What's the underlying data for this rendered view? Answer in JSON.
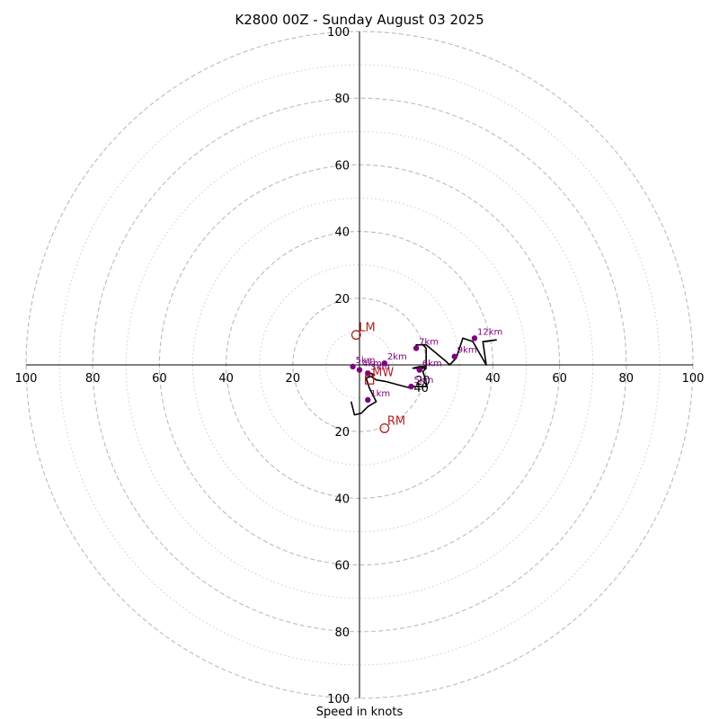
{
  "chart_data": {
    "type": "scatter",
    "title": "K2800 00Z - Sunday August 03 2025",
    "xlabel": "Speed in knots",
    "ylabel": "",
    "xlim": [
      -100,
      100
    ],
    "ylim": [
      -100,
      100
    ],
    "rings": {
      "major": [
        20,
        40,
        60,
        80,
        100
      ],
      "minor": [
        10,
        30,
        50,
        70,
        90
      ]
    },
    "ticks": {
      "left": [
        "100",
        "80",
        "60",
        "40",
        "20"
      ],
      "right": [
        "40",
        "60",
        "80",
        "100"
      ],
      "top": [
        "100",
        "80",
        "60",
        "40",
        "20"
      ],
      "bottom": [
        "20",
        "40",
        "60",
        "80",
        "100"
      ],
      "near_origin": [
        "20",
        "40"
      ]
    },
    "grid": true,
    "hodograph_line": {
      "x": [
        -2.5,
        -1.5,
        0.5,
        2.5,
        5,
        3,
        2,
        4.5,
        2,
        2.5,
        3.5,
        5,
        8,
        15.5,
        16,
        20,
        20,
        19,
        20,
        19,
        16,
        18,
        20,
        20,
        19,
        17,
        20,
        26,
        27,
        29,
        30,
        31,
        34,
        38,
        37,
        41,
        38,
        37
      ],
      "y": [
        -11,
        -15,
        -14.5,
        -12.5,
        -11,
        -7,
        -4,
        -3,
        -2,
        -3,
        -3.5,
        -4.5,
        -5,
        -7,
        -6.5,
        -6.5,
        -5,
        -2,
        -1,
        -1,
        -1,
        -0.5,
        -0.5,
        5,
        6,
        6,
        6,
        1,
        0,
        2,
        5,
        8,
        7,
        0,
        7,
        7.5,
        7,
        7
      ]
    },
    "height_markers": [
      {
        "label": "1km",
        "x": 2.5,
        "y": -10.5
      },
      {
        "label": "2km",
        "x": 7.5,
        "y": 0.5
      },
      {
        "label": "3km",
        "x": 2.5,
        "y": -2.5
      },
      {
        "label": "4km",
        "x": 0,
        "y": -1.5
      },
      {
        "label": "5km",
        "x": -2,
        "y": -0.5
      },
      {
        "label": "5km",
        "x": 15.5,
        "y": -6.5
      },
      {
        "label": "6km",
        "x": 18,
        "y": -1.5
      },
      {
        "label": "7km",
        "x": 17,
        "y": 5
      },
      {
        "label": "9km",
        "x": 28.5,
        "y": 2.5
      },
      {
        "label": "12km",
        "x": 34.5,
        "y": 8
      }
    ],
    "storm_motions": [
      {
        "label": "LM",
        "x": -1,
        "y": 9,
        "marker": "circle"
      },
      {
        "label": "RM",
        "x": 7.5,
        "y": -19,
        "marker": "circle"
      },
      {
        "label": "MW",
        "x": 3,
        "y": -4.5,
        "marker": "square"
      }
    ],
    "colors": {
      "line": "#000000",
      "height_markers": "#800080",
      "storm_motion": "#b22222",
      "grid": "#bbbbbb"
    }
  }
}
